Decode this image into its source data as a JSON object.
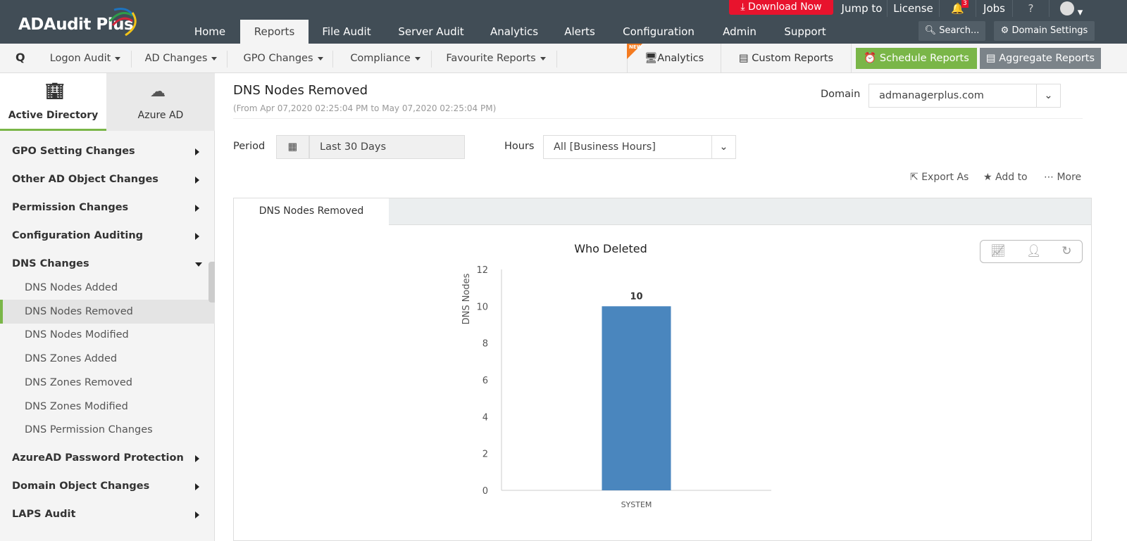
{
  "app": {
    "name": "ADAudit Plus"
  },
  "topbar": {
    "download": "Download Now",
    "jump_to": "Jump to",
    "license": "License",
    "notifications": "3",
    "jobs": "Jobs",
    "help": "?",
    "search": "Search...",
    "domain_settings": "Domain Settings"
  },
  "main_nav": [
    {
      "label": "Home"
    },
    {
      "label": "Reports",
      "active": true
    },
    {
      "label": "File Audit"
    },
    {
      "label": "Server Audit"
    },
    {
      "label": "Analytics"
    },
    {
      "label": "Alerts"
    },
    {
      "label": "Configuration"
    },
    {
      "label": "Admin"
    },
    {
      "label": "Support"
    }
  ],
  "sub_nav": {
    "items": [
      "Logon Audit",
      "AD Changes",
      "GPO Changes",
      "Compliance",
      "Favourite Reports"
    ],
    "new_badge": "NEW",
    "analytics": "Analytics",
    "custom_reports": "Custom Reports",
    "schedule_reports": "Schedule Reports",
    "aggregate_reports": "Aggregate Reports"
  },
  "sidebar": {
    "tabs": [
      {
        "label": "Active Directory",
        "active": true
      },
      {
        "label": "Azure AD"
      }
    ],
    "items": [
      "GPO Setting Changes",
      "Other AD Object Changes",
      "Permission Changes",
      "Configuration Auditing",
      "DNS Changes"
    ],
    "dns_sub": [
      "DNS Nodes Added",
      "DNS Nodes Removed",
      "DNS Nodes Modified",
      "DNS Zones Added",
      "DNS Zones Removed",
      "DNS Zones Modified",
      "DNS Permission Changes"
    ],
    "items_after": [
      "AzureAD Password Protection",
      "Domain Object Changes",
      "LAPS Audit"
    ]
  },
  "report": {
    "title": "DNS Nodes Removed",
    "range": "(From Apr 07,2020 02:25:04 PM to May 07,2020 02:25:04 PM)",
    "domain_label": "Domain",
    "domain_value": "admanagerplus.com",
    "period_label": "Period",
    "period_value": "Last 30 Days",
    "hours_label": "Hours",
    "hours_value": "All [Business Hours]",
    "export": "Export As",
    "add_to": "Add to",
    "more": "More",
    "tab": "DNS Nodes Removed"
  },
  "colors": {
    "accent_green": "#7ab648",
    "bar": "#4a86be",
    "download": "#e8132d"
  },
  "chart_data": {
    "type": "bar",
    "title": "Who Deleted",
    "ylabel": "DNS Nodes",
    "xlabel": "",
    "categories": [
      "SYSTEM"
    ],
    "values": [
      10
    ],
    "ylim": [
      0,
      12
    ],
    "yticks": [
      0,
      2,
      4,
      6,
      8,
      10,
      12
    ],
    "data_labels": [
      "10"
    ],
    "grid": false
  }
}
